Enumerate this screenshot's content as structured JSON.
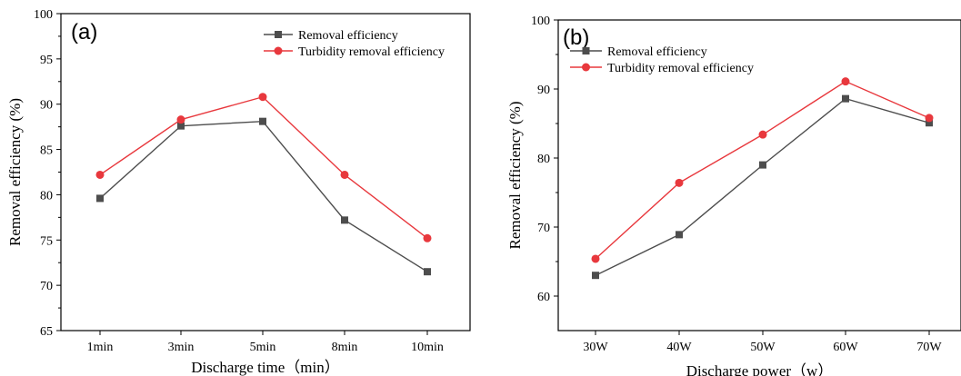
{
  "chart_data": [
    {
      "type": "line",
      "panel_label": "(a)",
      "xlabel": "Discharge time（min）",
      "ylabel": "Removal efficiency (%)",
      "categories": [
        "1min",
        "3min",
        "5min",
        "8min",
        "10min"
      ],
      "ylim": [
        65,
        100
      ],
      "yticks": [
        65,
        70,
        75,
        80,
        85,
        90,
        95,
        100
      ],
      "legend_position": "top-right",
      "grid": false,
      "series": [
        {
          "name": "Removal efficiency",
          "marker": "square",
          "color": "#4d4d4d",
          "values": [
            79.6,
            87.6,
            88.1,
            77.2,
            71.5
          ]
        },
        {
          "name": "Turbidity removal efficiency",
          "marker": "circle",
          "color": "#e8383d",
          "values": [
            82.2,
            88.3,
            90.8,
            82.2,
            75.2
          ]
        }
      ]
    },
    {
      "type": "line",
      "panel_label": "(b)",
      "xlabel": "Discharge power（w）",
      "ylabel": "Removal efficiency (%)",
      "categories": [
        "30W",
        "40W",
        "50W",
        "60W",
        "70W"
      ],
      "ylim": [
        55,
        100
      ],
      "yticks": [
        60,
        70,
        80,
        90,
        100
      ],
      "legend_position": "top-left",
      "grid": false,
      "series": [
        {
          "name": "Removal efficiency",
          "marker": "square",
          "color": "#4d4d4d",
          "values": [
            63.0,
            68.9,
            79.0,
            88.6,
            85.1
          ]
        },
        {
          "name": "Turbidity removal efficiency",
          "marker": "circle",
          "color": "#e8383d",
          "values": [
            65.4,
            76.4,
            83.4,
            91.1,
            85.8
          ]
        }
      ]
    }
  ]
}
